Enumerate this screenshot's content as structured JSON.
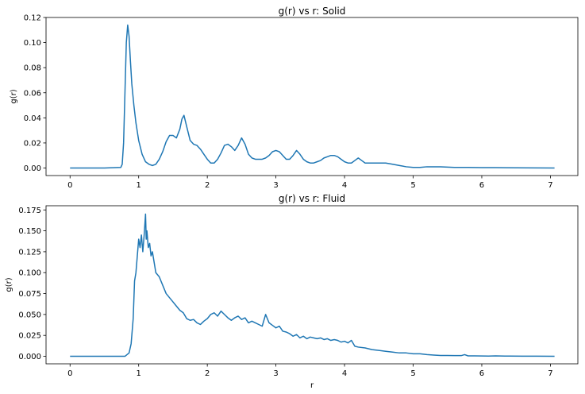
{
  "chart_data": [
    {
      "type": "line",
      "title": "g(r) vs r: Solid",
      "xlabel": "",
      "ylabel": "g(r)",
      "xlim": [
        -0.35,
        7.4
      ],
      "ylim": [
        -0.006,
        0.12
      ],
      "xticks": [
        0,
        1,
        2,
        3,
        4,
        5,
        6,
        7
      ],
      "xtick_labels": [
        "0",
        "1",
        "2",
        "3",
        "4",
        "5",
        "6",
        "7"
      ],
      "yticks": [
        0.0,
        0.02,
        0.04,
        0.06,
        0.08,
        0.1,
        0.12
      ],
      "ytick_labels": [
        "0.00",
        "0.02",
        "0.04",
        "0.06",
        "0.08",
        "0.10",
        "0.12"
      ],
      "series": [
        {
          "color": "#1f77b4",
          "x": [
            0,
            0.5,
            0.74,
            0.76,
            0.78,
            0.8,
            0.82,
            0.84,
            0.86,
            0.88,
            0.9,
            0.93,
            0.96,
            1.0,
            1.05,
            1.1,
            1.15,
            1.2,
            1.25,
            1.3,
            1.35,
            1.4,
            1.45,
            1.5,
            1.55,
            1.6,
            1.63,
            1.66,
            1.7,
            1.75,
            1.8,
            1.85,
            1.9,
            1.95,
            2.0,
            2.05,
            2.1,
            2.15,
            2.2,
            2.25,
            2.3,
            2.35,
            2.4,
            2.45,
            2.5,
            2.55,
            2.6,
            2.65,
            2.7,
            2.75,
            2.8,
            2.85,
            2.9,
            2.95,
            3.0,
            3.05,
            3.1,
            3.15,
            3.2,
            3.25,
            3.3,
            3.35,
            3.4,
            3.45,
            3.5,
            3.55,
            3.6,
            3.65,
            3.7,
            3.75,
            3.8,
            3.85,
            3.9,
            3.95,
            4.0,
            4.05,
            4.1,
            4.15,
            4.2,
            4.25,
            4.3,
            4.4,
            4.5,
            4.6,
            4.7,
            4.8,
            4.9,
            5.0,
            5.1,
            5.2,
            5.3,
            5.4,
            5.6,
            5.8,
            6.0,
            6.2,
            6.5,
            7.06
          ],
          "y": [
            0.0,
            0.0,
            0.0005,
            0.003,
            0.02,
            0.06,
            0.1,
            0.114,
            0.105,
            0.085,
            0.067,
            0.05,
            0.036,
            0.022,
            0.011,
            0.005,
            0.003,
            0.002,
            0.003,
            0.007,
            0.013,
            0.021,
            0.026,
            0.026,
            0.024,
            0.031,
            0.039,
            0.042,
            0.033,
            0.022,
            0.019,
            0.018,
            0.015,
            0.011,
            0.007,
            0.004,
            0.004,
            0.007,
            0.012,
            0.018,
            0.019,
            0.017,
            0.014,
            0.018,
            0.024,
            0.019,
            0.011,
            0.008,
            0.007,
            0.007,
            0.007,
            0.008,
            0.01,
            0.013,
            0.014,
            0.013,
            0.01,
            0.007,
            0.007,
            0.01,
            0.014,
            0.011,
            0.007,
            0.005,
            0.004,
            0.004,
            0.005,
            0.006,
            0.008,
            0.009,
            0.01,
            0.01,
            0.009,
            0.007,
            0.005,
            0.004,
            0.004,
            0.006,
            0.008,
            0.006,
            0.004,
            0.004,
            0.004,
            0.004,
            0.003,
            0.002,
            0.001,
            0.0005,
            0.0005,
            0.001,
            0.001,
            0.001,
            0.0005,
            0.0005,
            0.0003,
            0.0003,
            0.0002,
            0.0
          ]
        }
      ]
    },
    {
      "type": "line",
      "title": "g(r) vs r: Fluid",
      "xlabel": "r",
      "ylabel": "g(r)",
      "xlim": [
        -0.35,
        7.4
      ],
      "ylim": [
        -0.009,
        0.18
      ],
      "xticks": [
        0,
        1,
        2,
        3,
        4,
        5,
        6,
        7
      ],
      "xtick_labels": [
        "0",
        "1",
        "2",
        "3",
        "4",
        "5",
        "6",
        "7"
      ],
      "yticks": [
        0.0,
        0.025,
        0.05,
        0.075,
        0.1,
        0.125,
        0.15,
        0.175
      ],
      "ytick_labels": [
        "0.000",
        "0.025",
        "0.050",
        "0.075",
        "0.100",
        "0.125",
        "0.150",
        "0.175"
      ],
      "series": [
        {
          "color": "#1f77b4",
          "x": [
            0,
            0.5,
            0.8,
            0.86,
            0.89,
            0.92,
            0.94,
            0.96,
            0.98,
            1.0,
            1.02,
            1.04,
            1.06,
            1.08,
            1.1,
            1.11,
            1.12,
            1.14,
            1.16,
            1.18,
            1.2,
            1.25,
            1.3,
            1.35,
            1.4,
            1.45,
            1.5,
            1.55,
            1.6,
            1.65,
            1.7,
            1.75,
            1.8,
            1.85,
            1.9,
            1.95,
            2.0,
            2.05,
            2.1,
            2.15,
            2.2,
            2.25,
            2.3,
            2.35,
            2.4,
            2.45,
            2.5,
            2.55,
            2.6,
            2.65,
            2.7,
            2.75,
            2.8,
            2.85,
            2.9,
            2.95,
            3.0,
            3.05,
            3.1,
            3.15,
            3.2,
            3.25,
            3.3,
            3.35,
            3.4,
            3.45,
            3.5,
            3.55,
            3.6,
            3.65,
            3.7,
            3.75,
            3.8,
            3.85,
            3.9,
            3.95,
            4.0,
            4.05,
            4.1,
            4.15,
            4.2,
            4.3,
            4.4,
            4.5,
            4.6,
            4.7,
            4.8,
            4.9,
            5.0,
            5.1,
            5.2,
            5.3,
            5.4,
            5.5,
            5.6,
            5.7,
            5.75,
            5.8,
            5.9,
            6.0,
            6.1,
            6.2,
            6.4,
            6.6,
            6.8,
            7.06
          ],
          "y": [
            0.0,
            0.0,
            0.0,
            0.004,
            0.015,
            0.045,
            0.09,
            0.1,
            0.12,
            0.14,
            0.13,
            0.145,
            0.125,
            0.145,
            0.17,
            0.14,
            0.15,
            0.13,
            0.135,
            0.12,
            0.125,
            0.1,
            0.095,
            0.085,
            0.075,
            0.07,
            0.065,
            0.06,
            0.055,
            0.052,
            0.045,
            0.043,
            0.044,
            0.04,
            0.038,
            0.042,
            0.045,
            0.05,
            0.052,
            0.048,
            0.054,
            0.05,
            0.046,
            0.043,
            0.046,
            0.048,
            0.044,
            0.046,
            0.04,
            0.042,
            0.04,
            0.038,
            0.036,
            0.05,
            0.04,
            0.037,
            0.034,
            0.036,
            0.03,
            0.029,
            0.027,
            0.024,
            0.026,
            0.022,
            0.024,
            0.021,
            0.023,
            0.022,
            0.021,
            0.022,
            0.02,
            0.021,
            0.019,
            0.02,
            0.019,
            0.017,
            0.018,
            0.016,
            0.019,
            0.012,
            0.011,
            0.01,
            0.008,
            0.007,
            0.006,
            0.005,
            0.004,
            0.004,
            0.003,
            0.003,
            0.002,
            0.0015,
            0.001,
            0.001,
            0.0008,
            0.0008,
            0.002,
            0.0005,
            0.0005,
            0.0004,
            0.0003,
            0.0005,
            0.0002,
            0.0001,
            0.0001,
            0.0
          ]
        }
      ]
    }
  ]
}
